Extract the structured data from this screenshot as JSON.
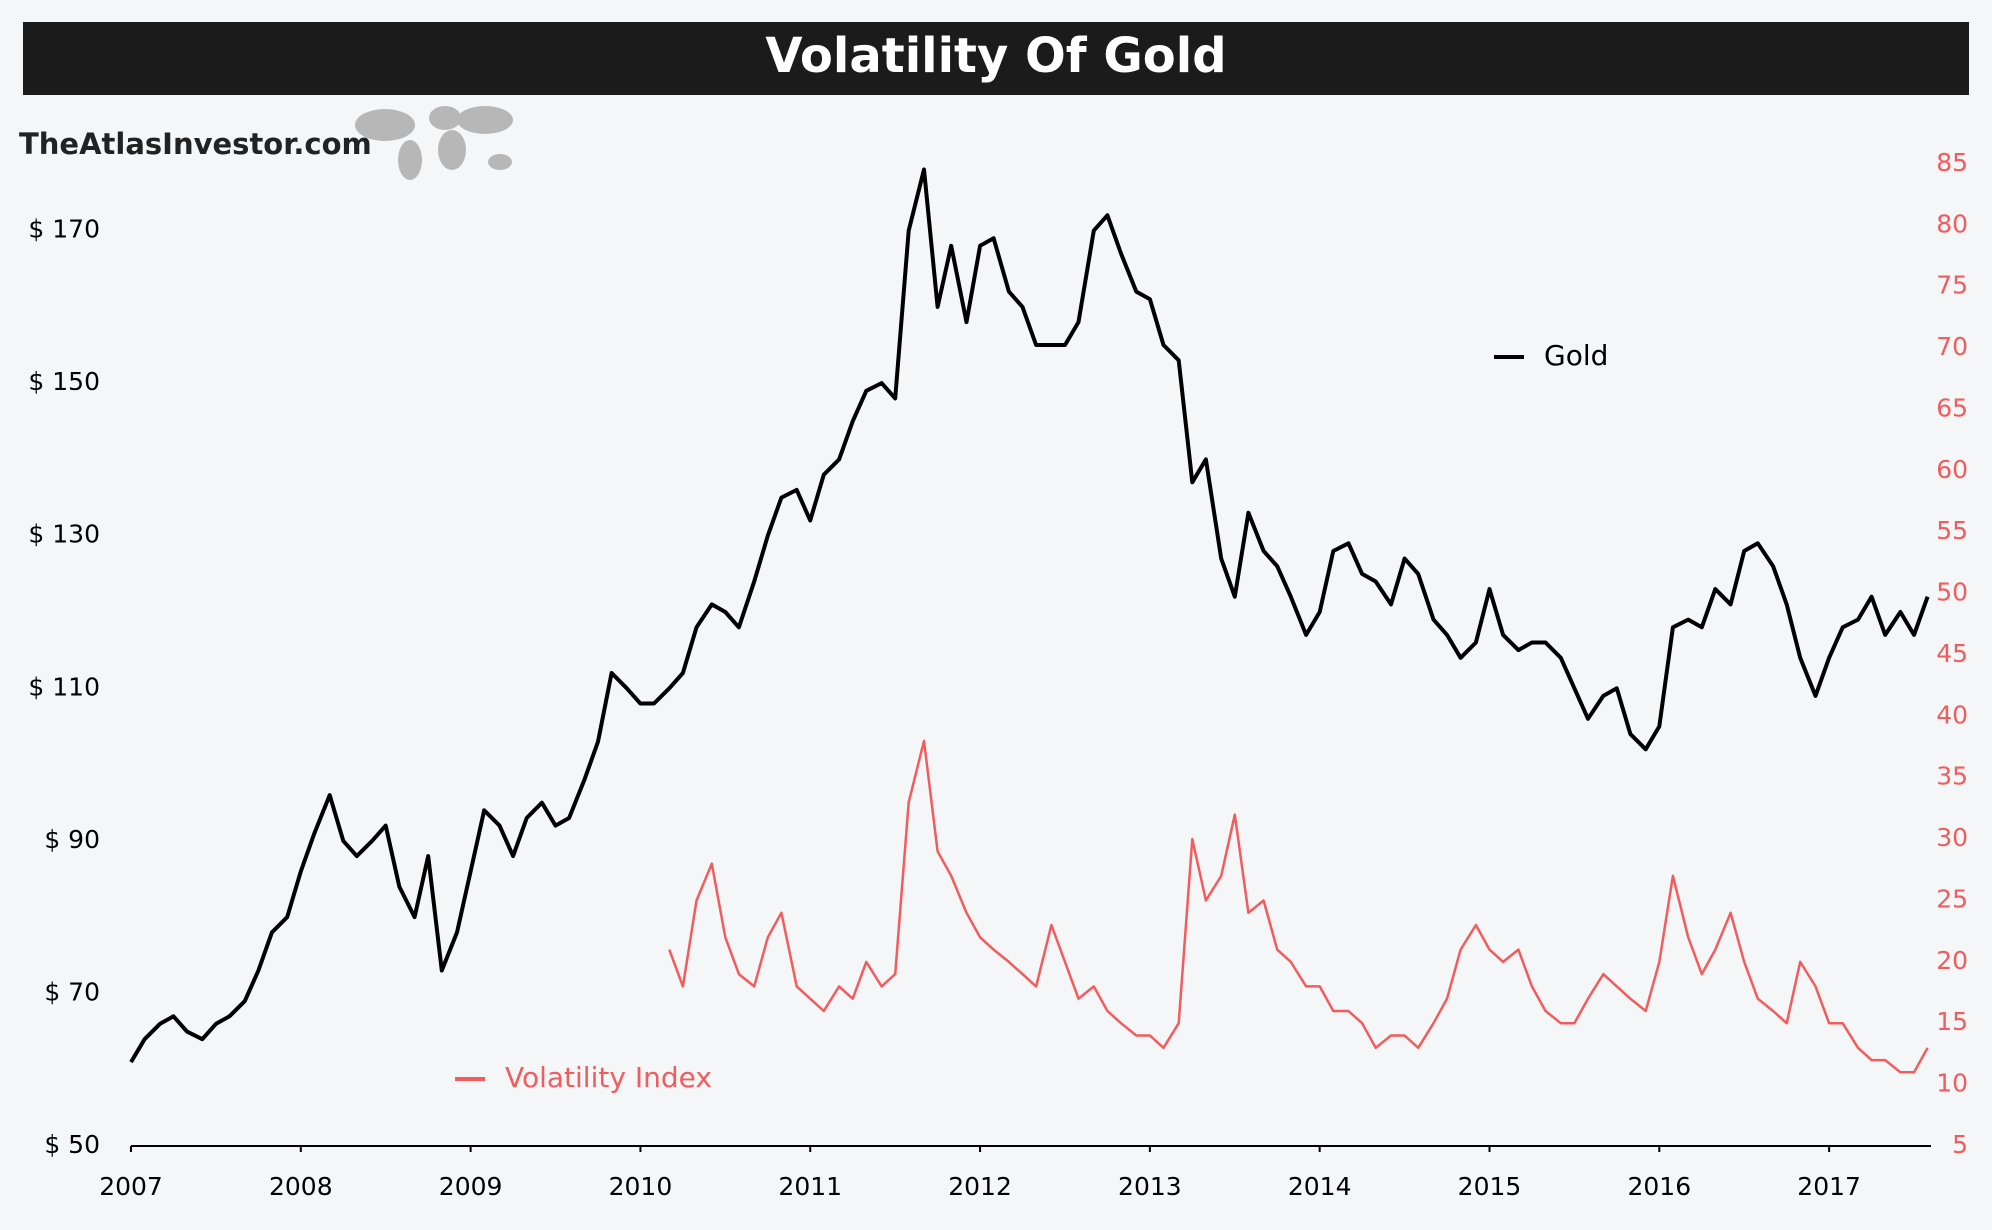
{
  "chart_data": {
    "type": "line",
    "title": "Volatility Of Gold",
    "watermark": "TheAtlasInvestor.com",
    "xlim": [
      2007,
      2017.6
    ],
    "xticks": [
      2007,
      2008,
      2009,
      2010,
      2011,
      2012,
      2013,
      2014,
      2015,
      2016,
      2017
    ],
    "ylim": [
      50,
      190
    ],
    "yticks": [
      {
        "value": 50,
        "label": "$ 50"
      },
      {
        "value": 70,
        "label": "$ 70"
      },
      {
        "value": 90,
        "label": "$ 90"
      },
      {
        "value": 110,
        "label": "$ 110"
      },
      {
        "value": 130,
        "label": "$ 130"
      },
      {
        "value": 150,
        "label": "$ 150"
      },
      {
        "value": 170,
        "label": "$ 170"
      }
    ],
    "y2lim": [
      5,
      92
    ],
    "y2ticks": [
      5,
      10,
      15,
      20,
      25,
      30,
      35,
      40,
      45,
      50,
      55,
      60,
      65,
      70,
      75,
      80,
      85
    ],
    "y2color": "#f25c5c",
    "series": [
      {
        "name": "Gold",
        "color": "#000000",
        "x": [
          2007,
          2007.08,
          2007.17,
          2007.25,
          2007.33,
          2007.42,
          2007.5,
          2007.58,
          2007.67,
          2007.75,
          2007.83,
          2007.92,
          2008,
          2008.08,
          2008.17,
          2008.25,
          2008.33,
          2008.42,
          2008.5,
          2008.58,
          2008.67,
          2008.75,
          2008.83,
          2008.92,
          2009,
          2009.08,
          2009.17,
          2009.25,
          2009.33,
          2009.42,
          2009.5,
          2009.58,
          2009.67,
          2009.75,
          2009.83,
          2009.92,
          2010,
          2010.08,
          2010.17,
          2010.25,
          2010.33,
          2010.42,
          2010.5,
          2010.58,
          2010.67,
          2010.75,
          2010.83,
          2010.92,
          2011,
          2011.08,
          2011.17,
          2011.25,
          2011.33,
          2011.42,
          2011.5,
          2011.58,
          2011.67,
          2011.75,
          2011.83,
          2011.92,
          2012,
          2012.08,
          2012.17,
          2012.25,
          2012.33,
          2012.42,
          2012.5,
          2012.58,
          2012.67,
          2012.75,
          2012.83,
          2012.92,
          2013,
          2013.08,
          2013.17,
          2013.25,
          2013.33,
          2013.42,
          2013.5,
          2013.58,
          2013.67,
          2013.75,
          2013.83,
          2013.92,
          2014,
          2014.08,
          2014.17,
          2014.25,
          2014.33,
          2014.42,
          2014.5,
          2014.58,
          2014.67,
          2014.75,
          2014.83,
          2014.92,
          2015,
          2015.08,
          2015.17,
          2015.25,
          2015.33,
          2015.42,
          2015.5,
          2015.58,
          2015.67,
          2015.75,
          2015.83,
          2015.92,
          2016,
          2016.08,
          2016.17,
          2016.25,
          2016.33,
          2016.42,
          2016.5,
          2016.58,
          2016.67,
          2016.75,
          2016.83,
          2016.92,
          2017,
          2017.08,
          2017.17,
          2017.25,
          2017.33,
          2017.42,
          2017.5,
          2017.58
        ],
        "values": [
          61,
          64,
          66,
          67,
          65,
          64,
          66,
          67,
          69,
          73,
          78,
          80,
          86,
          91,
          96,
          90,
          88,
          90,
          92,
          84,
          80,
          88,
          73,
          78,
          86,
          94,
          92,
          88,
          93,
          95,
          92,
          93,
          98,
          103,
          112,
          110,
          108,
          108,
          110,
          112,
          118,
          121,
          120,
          118,
          124,
          130,
          135,
          136,
          132,
          138,
          140,
          145,
          149,
          150,
          148,
          170,
          178,
          160,
          168,
          158,
          168,
          169,
          162,
          160,
          155,
          155,
          155,
          158,
          170,
          172,
          167,
          162,
          161,
          155,
          153,
          137,
          140,
          127,
          122,
          133,
          128,
          126,
          122,
          117,
          120,
          128,
          129,
          125,
          124,
          121,
          127,
          125,
          119,
          117,
          114,
          116,
          123,
          117,
          115,
          116,
          116,
          114,
          110,
          106,
          109,
          110,
          104,
          102,
          105,
          118,
          119,
          118,
          123,
          121,
          128,
          129,
          126,
          121,
          114,
          109,
          114,
          118,
          119,
          122,
          117,
          120,
          117,
          122
        ]
      },
      {
        "name": "Volatility Index",
        "color": "#f25c5c",
        "axis": "y2",
        "x": [
          2010.17,
          2010.25,
          2010.33,
          2010.42,
          2010.5,
          2010.58,
          2010.67,
          2010.75,
          2010.83,
          2010.92,
          2011,
          2011.08,
          2011.17,
          2011.25,
          2011.33,
          2011.42,
          2011.5,
          2011.58,
          2011.67,
          2011.75,
          2011.83,
          2011.92,
          2012,
          2012.08,
          2012.17,
          2012.25,
          2012.33,
          2012.42,
          2012.5,
          2012.58,
          2012.67,
          2012.75,
          2012.83,
          2012.92,
          2013,
          2013.08,
          2013.17,
          2013.25,
          2013.33,
          2013.42,
          2013.5,
          2013.58,
          2013.67,
          2013.75,
          2013.83,
          2013.92,
          2014,
          2014.08,
          2014.17,
          2014.25,
          2014.33,
          2014.42,
          2014.5,
          2014.58,
          2014.67,
          2014.75,
          2014.83,
          2014.92,
          2015,
          2015.08,
          2015.17,
          2015.25,
          2015.33,
          2015.42,
          2015.5,
          2015.58,
          2015.67,
          2015.75,
          2015.83,
          2015.92,
          2016,
          2016.08,
          2016.17,
          2016.25,
          2016.33,
          2016.42,
          2016.5,
          2016.58,
          2016.67,
          2016.75,
          2016.83,
          2016.92,
          2017,
          2017.08,
          2017.17,
          2017.25,
          2017.33,
          2017.42,
          2017.5,
          2017.58
        ],
        "values": [
          21,
          18,
          25,
          28,
          22,
          19,
          18,
          22,
          24,
          18,
          17,
          16,
          18,
          17,
          20,
          18,
          19,
          33,
          38,
          29,
          27,
          24,
          22,
          21,
          20,
          19,
          18,
          23,
          20,
          17,
          18,
          16,
          15,
          14,
          14,
          13,
          15,
          30,
          25,
          27,
          32,
          24,
          25,
          21,
          20,
          18,
          18,
          16,
          16,
          15,
          13,
          14,
          14,
          13,
          15,
          17,
          21,
          23,
          21,
          20,
          21,
          18,
          16,
          15,
          15,
          17,
          19,
          18,
          17,
          16,
          20,
          27,
          22,
          19,
          21,
          24,
          20,
          17,
          16,
          15,
          20,
          18,
          15,
          15,
          13,
          12,
          12,
          11,
          11,
          13
        ]
      }
    ]
  }
}
